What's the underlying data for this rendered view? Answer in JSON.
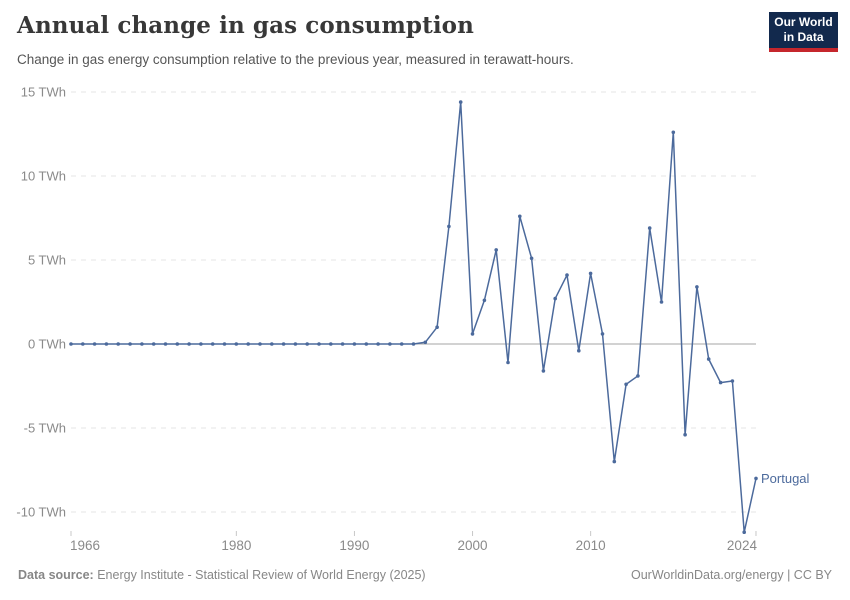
{
  "header": {
    "title": "Annual change in gas consumption",
    "subtitle": "Change in gas energy consumption relative to the previous year, measured in terawatt-hours.",
    "logo": {
      "line1": "Our World",
      "line2": "in Data"
    }
  },
  "chart_data": {
    "type": "line",
    "title": "Annual change in gas consumption",
    "ylabel": "",
    "xlabel": "",
    "unit": "TWh",
    "grid": "horizontal-dashed",
    "legend_position": "end-of-line-label",
    "xlim": [
      1966,
      2024
    ],
    "ylim": [
      -11.5,
      15
    ],
    "x_ticks": [
      1966,
      1980,
      1990,
      2000,
      2010,
      2024
    ],
    "y_ticks": [
      {
        "value": 15,
        "label": "15 TWh"
      },
      {
        "value": 10,
        "label": "10 TWh"
      },
      {
        "value": 5,
        "label": "5 TWh"
      },
      {
        "value": 0,
        "label": "0 TWh"
      },
      {
        "value": -5,
        "label": "-5 TWh"
      },
      {
        "value": -10,
        "label": "-10 TWh"
      }
    ],
    "series": [
      {
        "name": "Portugal",
        "color": "#4c6a9c",
        "x": [
          1966,
          1967,
          1968,
          1969,
          1970,
          1971,
          1972,
          1973,
          1974,
          1975,
          1976,
          1977,
          1978,
          1979,
          1980,
          1981,
          1982,
          1983,
          1984,
          1985,
          1986,
          1987,
          1988,
          1989,
          1990,
          1991,
          1992,
          1993,
          1994,
          1995,
          1996,
          1997,
          1998,
          1999,
          2000,
          2001,
          2002,
          2003,
          2004,
          2005,
          2006,
          2007,
          2008,
          2009,
          2010,
          2011,
          2012,
          2013,
          2014,
          2015,
          2016,
          2017,
          2018,
          2019,
          2020,
          2021,
          2022,
          2023,
          2024
        ],
        "values": [
          0,
          0,
          0,
          0,
          0,
          0,
          0,
          0,
          0,
          0,
          0,
          0,
          0,
          0,
          0,
          0,
          0,
          0,
          0,
          0,
          0,
          0,
          0,
          0,
          0,
          0,
          0,
          0,
          0,
          0,
          0.1,
          1.0,
          7.0,
          14.4,
          0.6,
          2.6,
          5.6,
          -1.1,
          7.6,
          5.1,
          -1.6,
          2.7,
          4.1,
          -0.4,
          4.2,
          0.6,
          -7.0,
          -2.4,
          -1.9,
          6.9,
          2.5,
          12.6,
          -5.4,
          3.4,
          -0.9,
          -2.3,
          -2.2,
          -11.2,
          -8.0
        ]
      }
    ]
  },
  "series_label": "Portugal",
  "footer": {
    "source_label": "Data source:",
    "source_value": " Energy Institute - Statistical Review of World Energy (2025)",
    "credit": "OurWorldinData.org/energy | CC BY"
  },
  "colors": {
    "line": "#4c6a9c",
    "grid": "#e4e4e4",
    "zero_line": "#a5a5a5",
    "axis_text": "#8a8a8a",
    "tick_mark": "#c8c8c8",
    "logo_bg": "#12294d",
    "logo_bar": "#c5262c"
  }
}
